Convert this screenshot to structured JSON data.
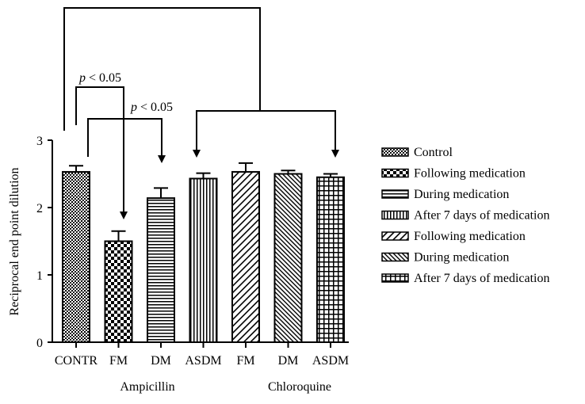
{
  "chart_data": {
    "type": "bar",
    "categories": [
      "CONTR",
      "FM",
      "DM",
      "ASDM",
      "FM",
      "DM",
      "ASDM"
    ],
    "values": [
      2.53,
      1.5,
      2.14,
      2.43,
      2.53,
      2.5,
      2.45
    ],
    "errors": [
      0.09,
      0.15,
      0.15,
      0.08,
      0.13,
      0.05,
      0.05
    ],
    "ylabel": "Reciprocal end point dilution",
    "xlabel": "",
    "ylim": [
      0,
      3
    ],
    "yticks": [
      "0",
      "1",
      "2",
      "3"
    ],
    "group_labels": [
      "Ampicillin",
      "Chloroquine"
    ],
    "legend": [
      {
        "label": "Control",
        "pattern": "pat-control"
      },
      {
        "label": "Following medication",
        "pattern": "pat-checker"
      },
      {
        "label": "During medication",
        "pattern": "pat-hlines"
      },
      {
        "label": "After 7 days of medication",
        "pattern": "pat-vlines"
      },
      {
        "label": "Following medication",
        "pattern": "pat-diag"
      },
      {
        "label": "During medication",
        "pattern": "pat-diagfine"
      },
      {
        "label": "After 7 days of medication",
        "pattern": "pat-grid"
      }
    ],
    "annotations": [
      {
        "p": "p",
        "text": " < 0.05"
      },
      {
        "p": "p",
        "text": " < 0.05"
      }
    ],
    "legend_position": "right",
    "grid": false
  }
}
